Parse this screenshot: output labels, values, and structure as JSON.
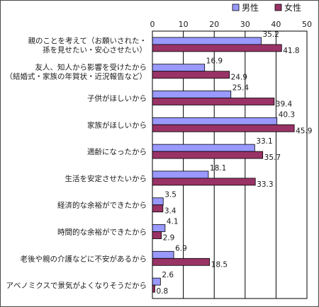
{
  "chart_data": {
    "type": "bar",
    "orientation": "horizontal",
    "xlim": [
      0,
      50
    ],
    "xticks": [
      0,
      10,
      20,
      30,
      40,
      50
    ],
    "grid": true,
    "legend_position": "top-right",
    "categories": [
      [
        "親のことを考えて（お願いされた・",
        "孫を見せたい・安心させたい）"
      ],
      [
        "友人、知人から影響を受けたから",
        "（結婚式・家族の年賀状・近況報告など）"
      ],
      [
        "子供がほしいから"
      ],
      [
        "家族がほしいから"
      ],
      [
        "適齢になったから"
      ],
      [
        "生活を安定させたいから"
      ],
      [
        "経済的な余裕ができたから"
      ],
      [
        "時間的な余裕ができたから"
      ],
      [
        "老後や親の介護などに不安があるから"
      ],
      [
        "アベノミクスで景気がよくなりそうだから"
      ]
    ],
    "series": [
      {
        "name": "男性",
        "color": "#9999ff",
        "values": [
          35.2,
          16.9,
          25.4,
          40.3,
          33.1,
          18.1,
          3.5,
          4.1,
          6.9,
          2.6
        ]
      },
      {
        "name": "女性",
        "color": "#993366",
        "values": [
          41.8,
          24.9,
          39.4,
          45.9,
          35.7,
          33.3,
          3.4,
          2.9,
          18.5,
          0.8
        ]
      }
    ]
  }
}
